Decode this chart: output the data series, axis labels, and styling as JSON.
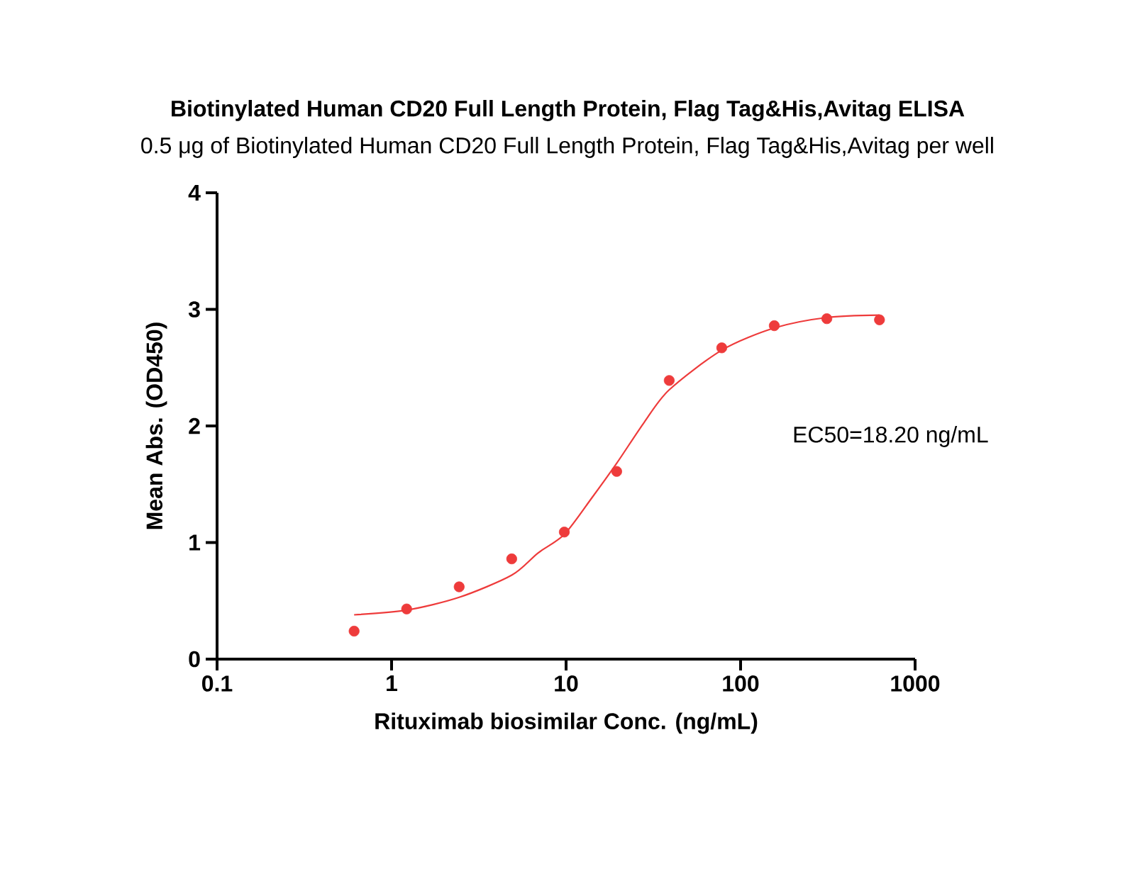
{
  "chart_data": {
    "type": "scatter",
    "title": "Biotinylated Human CD20 Full Length Protein, Flag Tag&His,Avitag ELISA",
    "subtitle": "0.5 μg of Biotinylated Human CD20 Full Length Protein, Flag Tag&His,Avitag per well",
    "xlabel": "Rituximab biosimilar Conc. (ng/mL)",
    "ylabel": "Mean Abs. (OD450)",
    "log": "x",
    "xlim": [
      0.1,
      1000
    ],
    "xticks": [
      0.1,
      1,
      10,
      100,
      1000
    ],
    "ylim": [
      0,
      4
    ],
    "yticks": [
      0,
      1,
      2,
      3,
      4
    ],
    "grid": false,
    "annotations": [
      "EC50=18.20 ng/mL"
    ],
    "series": [
      {
        "marker": "circle",
        "color": "#ee3b3b",
        "x": [
          0.61,
          1.22,
          2.44,
          4.88,
          9.77,
          19.5,
          39,
          78,
          156,
          312,
          625
        ],
        "values": [
          0.24,
          0.43,
          0.62,
          0.86,
          1.09,
          1.61,
          2.39,
          2.67,
          2.86,
          2.92,
          2.91
        ]
      },
      {
        "type": "line",
        "marker": "none",
        "line_style": "solid",
        "color": "#ee3b3b",
        "x": [
          0.61,
          1.22,
          2.44,
          4.88,
          6.9,
          9.77,
          14,
          19.5,
          28,
          39,
          78,
          156,
          312,
          625
        ],
        "values": [
          0.38,
          0.42,
          0.53,
          0.72,
          0.91,
          1.07,
          1.38,
          1.68,
          2.03,
          2.31,
          2.65,
          2.84,
          2.93,
          2.95
        ]
      }
    ]
  }
}
